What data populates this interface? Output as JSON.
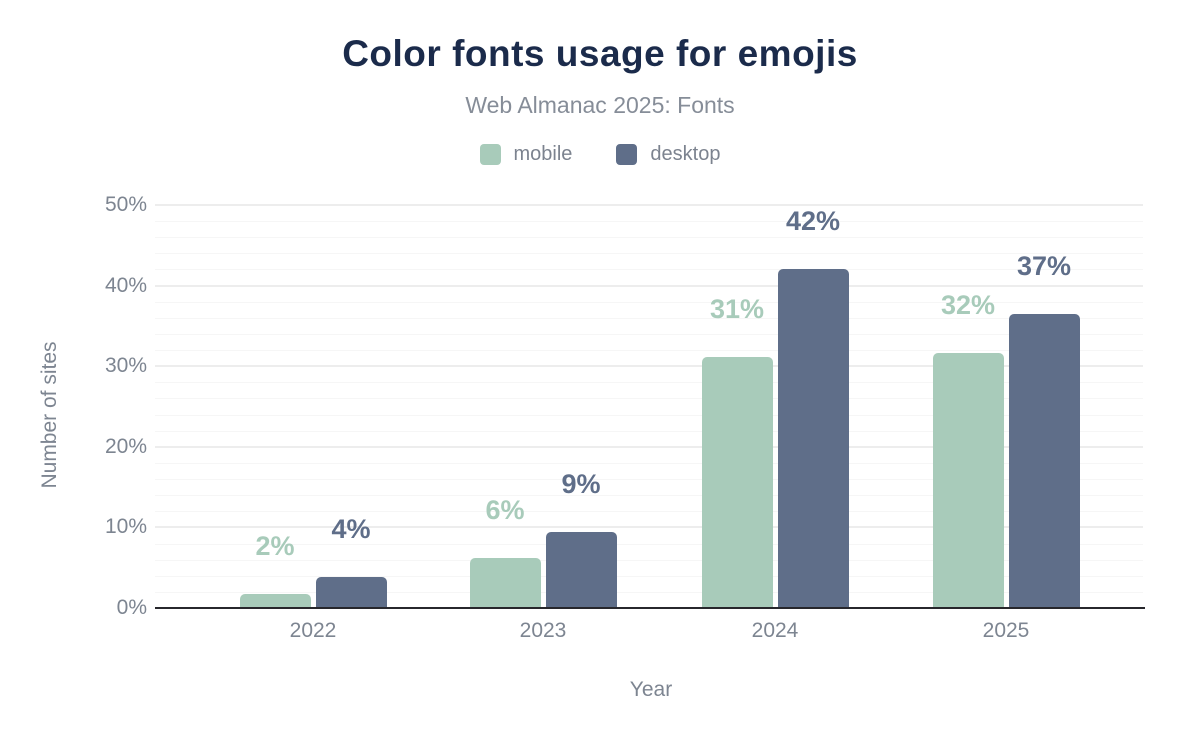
{
  "header": {
    "title": "Color fonts usage for emojis",
    "subtitle": "Web Almanac 2025: Fonts"
  },
  "colors": {
    "background": "#ffffff",
    "title_text": "#1b2b4b",
    "subtitle_text": "#868d98",
    "axis_text": "#7d8591",
    "baseline": "#27272c",
    "grid_major": "#ededed",
    "grid_minor": "#f6f6f6",
    "mobile": "#a8cbba",
    "desktop": "#5f6e89"
  },
  "chart_data": {
    "type": "bar",
    "title": "Color fonts usage for emojis",
    "subtitle": "Web Almanac 2025: Fonts",
    "categories": [
      "2022",
      "2023",
      "2024",
      "2025"
    ],
    "series": [
      {
        "name": "mobile",
        "color": "#a8cbba",
        "values": [
          1.7,
          6.2,
          31.2,
          31.6
        ],
        "labels": [
          "2%",
          "6%",
          "31%",
          "32%"
        ]
      },
      {
        "name": "desktop",
        "color": "#5f6e89",
        "values": [
          3.8,
          9.4,
          42.1,
          36.5
        ],
        "labels": [
          "4%",
          "9%",
          "42%",
          "37%"
        ]
      }
    ],
    "xlabel": "Year",
    "ylabel": "Number of sites",
    "ylim": [
      0,
      50
    ],
    "ytick_labels": [
      "0%",
      "10%",
      "20%",
      "30%",
      "40%",
      "50%"
    ],
    "ytick_step_major": 10,
    "ytick_step_minor": 2,
    "grid": "on",
    "legend_position": "top"
  }
}
